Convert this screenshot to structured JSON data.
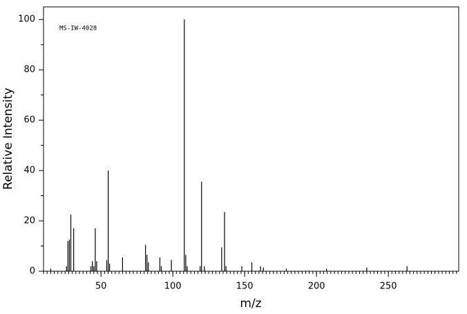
{
  "chart_data": {
    "type": "stem",
    "title": "MS-IW-4028",
    "x_label": "m/z",
    "y_label": "Relative Intensity",
    "x": [
      15,
      26,
      27,
      28,
      29,
      31,
      43,
      44,
      45,
      46,
      47,
      54,
      55,
      56,
      65,
      81,
      82,
      83,
      91,
      92,
      99,
      108,
      109,
      110,
      119,
      120,
      122,
      134,
      136,
      137,
      148,
      155,
      161,
      163,
      179,
      207,
      235,
      263
    ],
    "values": [
      1,
      2,
      12,
      12.5,
      22.5,
      17,
      2,
      4,
      2,
      17,
      4,
      4.5,
      40,
      3,
      5.5,
      10.5,
      6.5,
      3.5,
      5.5,
      2,
      4.5,
      100,
      6.5,
      2,
      2,
      35.5,
      2,
      9.5,
      23.5,
      2,
      2,
      3.5,
      2,
      1.5,
      1,
      1,
      1.5,
      2
    ],
    "color": "#000000",
    "xlim": [
      10,
      299
    ],
    "xticks": [
      50,
      100,
      150,
      200,
      250
    ],
    "ylim": [
      0,
      105
    ],
    "yticks": [
      0,
      20,
      40,
      60,
      80,
      100
    ]
  }
}
